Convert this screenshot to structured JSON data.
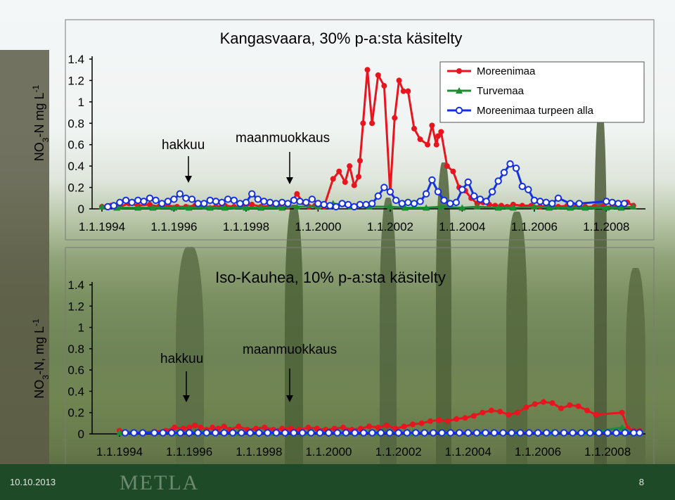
{
  "footer": {
    "date": "10.10.2013",
    "logo": "METLA",
    "page_number": "8"
  },
  "colors": {
    "moreenimaa": "#e8141e",
    "turvemaa": "#1e8c32",
    "moreenimaa_turpeen_alla": "#1430e0"
  },
  "chart_data": [
    {
      "type": "line",
      "title": "Kangasvaara, 30% p-a:sta käsitelty",
      "ylabel_main": "NO",
      "ylabel_sub": "3",
      "ylabel_rest": "-N mg L",
      "ylabel_sup": "-1",
      "ylim": [
        0,
        1.4
      ],
      "yticks": [
        "0",
        "0.2",
        "0.4",
        "0.6",
        "0.8",
        "1",
        "1.2",
        "1.4"
      ],
      "xlim": [
        "1994-01-01",
        "2009-02-01"
      ],
      "xticks": [
        "1.1.1994",
        "1.1.1996",
        "1.1.1998",
        "1.1.2000",
        "1.1.2002",
        "1.1.2004",
        "1.1.2006",
        "1.1.2008"
      ],
      "annotations": [
        {
          "text": "hakkuu",
          "x": "1995-09-01"
        },
        {
          "text": "maanmuokkaus",
          "x": "1999-09-01"
        }
      ],
      "legend": "top-right",
      "series": [
        {
          "name": "Moreenimaa",
          "x": [
            "1994-01-01",
            "1994-04-01",
            "1994-07-01",
            "1994-10-01",
            "1995-01-01",
            "1995-05-01",
            "1995-08-01",
            "1995-11-01",
            "1996-02-01",
            "1996-05-01",
            "1996-08-01",
            "1996-11-01",
            "1997-03-01",
            "1997-06-01",
            "1997-09-01",
            "1997-12-01",
            "1998-03-01",
            "1998-06-01",
            "1998-09-01",
            "1998-12-01",
            "1999-03-01",
            "1999-06-01",
            "1999-08-01",
            "1999-10-01",
            "1999-12-01",
            "2000-03-01",
            "2000-06-01",
            "2000-08-01",
            "2000-10-01",
            "2000-11-15",
            "2001-01-01",
            "2001-02-15",
            "2001-03-01",
            "2001-04-01",
            "2001-05-15",
            "2001-07-01",
            "2001-09-01",
            "2001-11-01",
            "2002-01-01",
            "2002-02-15",
            "2002-04-01",
            "2002-05-15",
            "2002-07-01",
            "2002-09-01",
            "2002-11-01",
            "2003-01-15",
            "2003-03-01",
            "2003-04-15",
            "2003-05-01",
            "2003-06-01",
            "2003-08-01",
            "2003-10-01",
            "2003-12-01",
            "2004-02-01",
            "2004-04-01",
            "2004-06-01",
            "2004-08-01",
            "2004-10-01",
            "2004-12-01",
            "2005-02-01",
            "2005-04-01",
            "2005-06-01",
            "2005-09-01",
            "2005-12-01",
            "2006-03-01",
            "2006-06-01",
            "2006-09-01",
            "2006-12-01",
            "2007-03-01",
            "2007-06-01",
            "2007-09-01",
            "2007-12-01",
            "2008-03-01",
            "2008-06-01",
            "2008-08-01",
            "2008-10-01"
          ],
          "y": [
            0.02,
            0.03,
            0.02,
            0.05,
            0.03,
            0.04,
            0.02,
            0.03,
            0.02,
            0.02,
            0.03,
            0.02,
            0.02,
            0.03,
            0.02,
            0.02,
            0.04,
            0.02,
            0.03,
            0.02,
            0.02,
            0.14,
            0.06,
            0.02,
            0.03,
            0.02,
            0.28,
            0.35,
            0.25,
            0.4,
            0.22,
            0.3,
            0.45,
            0.8,
            1.3,
            0.8,
            1.25,
            1.15,
            0.15,
            0.85,
            1.2,
            1.1,
            1.1,
            0.75,
            0.65,
            0.6,
            0.78,
            0.6,
            0.68,
            0.72,
            0.4,
            0.35,
            0.2,
            0.17,
            0.1,
            0.05,
            0.06,
            0.04,
            0.03,
            0.03,
            0.02,
            0.04,
            0.03,
            0.03,
            0.02,
            0.03,
            0.02,
            0.03,
            0.02,
            0.02,
            0.02,
            0.02,
            0.02,
            0.03,
            0.06,
            0.03
          ]
        },
        {
          "name": "Turvemaa",
          "x": [
            "1994-01-01",
            "1994-06-01",
            "1995-01-01",
            "1995-06-01",
            "1996-01-01",
            "1996-06-01",
            "1997-01-01",
            "1997-06-01",
            "1998-01-01",
            "1998-06-01",
            "1999-01-01",
            "1999-06-01",
            "2000-01-01",
            "2000-06-01",
            "2000-12-01",
            "2001-06-01",
            "2002-01-01",
            "2002-06-01",
            "2003-01-01",
            "2003-06-01",
            "2004-01-01",
            "2004-06-01",
            "2005-01-01",
            "2005-06-01",
            "2006-01-01",
            "2006-06-01",
            "2007-01-01",
            "2007-06-01",
            "2008-01-01",
            "2008-06-01",
            "2008-10-01"
          ],
          "y": [
            0.02,
            0.01,
            0.01,
            0.01,
            0.01,
            0.01,
            0.01,
            0.01,
            0.01,
            0.01,
            0.01,
            0.02,
            0.02,
            0.05,
            0.02,
            0.02,
            0.02,
            0.01,
            0.01,
            0.02,
            0.01,
            0.02,
            0.01,
            0.01,
            0.02,
            0.01,
            0.01,
            0.01,
            0.01,
            0.01,
            0.02
          ]
        },
        {
          "name": "Moreenimaa turpeen alla",
          "x": [
            "1994-03-01",
            "1994-05-01",
            "1994-07-01",
            "1994-09-01",
            "1994-11-01",
            "1995-01-01",
            "1995-03-01",
            "1995-05-01",
            "1995-07-01",
            "1995-09-01",
            "1995-11-01",
            "1996-01-01",
            "1996-03-01",
            "1996-05-01",
            "1996-07-01",
            "1996-09-01",
            "1996-11-01",
            "1997-01-01",
            "1997-03-01",
            "1997-05-01",
            "1997-07-01",
            "1997-09-01",
            "1997-11-01",
            "1998-01-01",
            "1998-03-01",
            "1998-05-01",
            "1998-07-01",
            "1998-09-01",
            "1998-11-01",
            "1999-01-01",
            "1999-03-01",
            "1999-05-01",
            "1999-07-01",
            "1999-09-01",
            "1999-11-01",
            "2000-01-01",
            "2000-03-01",
            "2000-05-01",
            "2000-07-01",
            "2000-09-01",
            "2000-11-01",
            "2001-01-01",
            "2001-03-01",
            "2001-05-01",
            "2001-07-01",
            "2001-09-01",
            "2001-11-01",
            "2002-01-01",
            "2002-03-01",
            "2002-05-01",
            "2002-07-01",
            "2002-09-01",
            "2002-11-01",
            "2003-01-01",
            "2003-03-01",
            "2003-05-01",
            "2003-07-01",
            "2003-09-01",
            "2003-11-01",
            "2004-01-01",
            "2004-03-01",
            "2004-05-01",
            "2004-07-01",
            "2004-09-01",
            "2004-11-01",
            "2005-01-01",
            "2005-03-01",
            "2005-05-01",
            "2005-07-01",
            "2005-09-01",
            "2005-11-01",
            "2006-01-01",
            "2006-03-01",
            "2006-05-01",
            "2006-07-01",
            "2006-09-01",
            "2007-01-01",
            "2007-04-01",
            "2008-01-01",
            "2008-03-01",
            "2008-05-01",
            "2008-07-01"
          ],
          "y": [
            0.02,
            0.03,
            0.06,
            0.08,
            0.06,
            0.08,
            0.07,
            0.1,
            0.08,
            0.05,
            0.07,
            0.09,
            0.14,
            0.1,
            0.09,
            0.05,
            0.05,
            0.08,
            0.07,
            0.06,
            0.09,
            0.08,
            0.05,
            0.06,
            0.14,
            0.09,
            0.07,
            0.06,
            0.05,
            0.06,
            0.05,
            0.08,
            0.07,
            0.06,
            0.09,
            0.05,
            0.04,
            0.03,
            0.02,
            0.05,
            0.04,
            0.02,
            0.04,
            0.04,
            0.05,
            0.12,
            0.2,
            0.16,
            0.08,
            0.05,
            0.06,
            0.05,
            0.07,
            0.14,
            0.27,
            0.16,
            0.08,
            0.05,
            0.06,
            0.18,
            0.25,
            0.12,
            0.09,
            0.07,
            0.16,
            0.26,
            0.34,
            0.42,
            0.38,
            0.21,
            0.18,
            0.08,
            0.07,
            0.06,
            0.05,
            0.1,
            0.05,
            0.05,
            0.07,
            0.06,
            0.05,
            0.05
          ]
        }
      ]
    },
    {
      "type": "line",
      "title": "Iso-Kauhea, 10% p-a:sta käsitelty",
      "ylabel_main": "NO",
      "ylabel_sub": "3",
      "ylabel_rest": "-N, mg L",
      "ylabel_sup": "-1",
      "ylim": [
        0,
        1.4
      ],
      "yticks": [
        "0",
        "0.2",
        "0.4",
        "0.6",
        "0.8",
        "1",
        "1.2",
        "1.4"
      ],
      "xlim": [
        "1993-07-01",
        "2009-02-01"
      ],
      "xticks": [
        "1.1.1994",
        "1.1.1996",
        "1.1.1998",
        "1.1.2000",
        "1.1.2002",
        "1.1.2004",
        "1.1.2006",
        "1.1.2008"
      ],
      "annotations": [
        {
          "text": "hakkuu",
          "x": "1995-09-01"
        },
        {
          "text": "maanmuokkaus",
          "x": "1999-09-01"
        }
      ],
      "series": [
        {
          "name": "Moreenimaa",
          "x": [
            "1994-01-01",
            "1994-06-01",
            "1995-01-01",
            "1995-05-01",
            "1995-08-01",
            "1995-11-01",
            "1996-01-01",
            "1996-03-01",
            "1996-05-01",
            "1996-07-01",
            "1996-09-01",
            "1996-11-01",
            "1997-01-01",
            "1997-03-01",
            "1997-06-01",
            "1997-09-01",
            "1997-12-01",
            "1998-03-01",
            "1998-06-01",
            "1998-09-01",
            "1998-12-01",
            "1999-03-01",
            "1999-06-01",
            "1999-09-01",
            "1999-12-01",
            "2000-03-01",
            "2000-06-01",
            "2000-09-01",
            "2000-12-01",
            "2001-03-01",
            "2001-06-01",
            "2001-09-01",
            "2001-12-01",
            "2002-03-01",
            "2002-06-01",
            "2002-09-01",
            "2002-12-01",
            "2003-03-01",
            "2003-06-01",
            "2003-09-01",
            "2003-12-01",
            "2004-03-01",
            "2004-06-01",
            "2004-09-01",
            "2004-12-01",
            "2005-03-01",
            "2005-06-01",
            "2005-09-01",
            "2005-12-01",
            "2006-03-01",
            "2006-06-01",
            "2006-09-01",
            "2006-12-01",
            "2007-03-01",
            "2007-06-01",
            "2007-09-01",
            "2008-06-01",
            "2008-08-01",
            "2008-10-01",
            "2008-12-01"
          ],
          "y": [
            0.03,
            0.01,
            0.02,
            0.03,
            0.06,
            0.05,
            0.06,
            0.08,
            0.06,
            0.04,
            0.06,
            0.05,
            0.07,
            0.04,
            0.07,
            0.04,
            0.05,
            0.06,
            0.04,
            0.05,
            0.05,
            0.04,
            0.06,
            0.05,
            0.04,
            0.05,
            0.06,
            0.04,
            0.05,
            0.07,
            0.06,
            0.08,
            0.05,
            0.07,
            0.09,
            0.1,
            0.12,
            0.13,
            0.12,
            0.14,
            0.15,
            0.17,
            0.2,
            0.22,
            0.21,
            0.18,
            0.2,
            0.25,
            0.28,
            0.3,
            0.29,
            0.24,
            0.27,
            0.26,
            0.22,
            0.18,
            0.2,
            0.05,
            0.03,
            0.03
          ]
        },
        {
          "name": "Turvemaa",
          "x": [
            "1994-01-01",
            "1995-01-01",
            "1995-09-01",
            "1996-06-01",
            "1997-06-01",
            "1998-06-01",
            "1999-06-01",
            "2000-06-01",
            "2001-06-01",
            "2002-06-01",
            "2003-06-01",
            "2004-06-01",
            "2005-06-01",
            "2006-06-01",
            "2007-06-01",
            "2008-06-01",
            "2008-10-01"
          ],
          "y": [
            0.01,
            0.01,
            0.01,
            0.02,
            0.01,
            0.01,
            0.01,
            0.01,
            0.01,
            0.01,
            0.01,
            0.01,
            0.01,
            0.01,
            0.01,
            0.06,
            0.01
          ]
        },
        {
          "name": "Moreenimaa turpeen alla",
          "x": [
            "1994-03-01",
            "1994-06-01",
            "1994-09-01",
            "1995-01-01",
            "1995-04-01",
            "1995-07-01",
            "1995-10-01",
            "1996-01-01",
            "1996-04-01",
            "1996-07-01",
            "1996-10-01",
            "1997-01-01",
            "1997-04-01",
            "1997-07-01",
            "1997-10-01",
            "1998-01-01",
            "1998-04-01",
            "1998-07-01",
            "1998-10-01",
            "1999-01-01",
            "1999-04-01",
            "1999-07-01",
            "1999-10-01",
            "2000-01-01",
            "2000-04-01",
            "2000-07-01",
            "2000-10-01",
            "2001-01-01",
            "2001-04-01",
            "2001-07-01",
            "2001-10-01",
            "2002-01-01",
            "2002-04-01",
            "2002-07-01",
            "2002-10-01",
            "2003-01-01",
            "2003-04-01",
            "2003-07-01",
            "2003-10-01",
            "2004-01-01",
            "2004-04-01",
            "2004-07-01",
            "2004-10-01",
            "2005-01-01",
            "2005-04-01",
            "2005-07-01",
            "2005-10-01",
            "2006-01-01",
            "2006-04-01",
            "2006-07-01",
            "2006-10-01",
            "2007-01-01",
            "2007-04-01",
            "2007-07-01",
            "2007-10-01",
            "2008-01-01",
            "2008-04-01",
            "2008-07-01",
            "2008-10-01",
            "2008-12-01"
          ],
          "y": [
            0.01,
            0.01,
            0.01,
            0.01,
            0.01,
            0.01,
            0.01,
            0.01,
            0.01,
            0.01,
            0.01,
            0.01,
            0.01,
            0.01,
            0.01,
            0.01,
            0.01,
            0.01,
            0.01,
            0.01,
            0.01,
            0.01,
            0.01,
            0.01,
            0.01,
            0.01,
            0.01,
            0.01,
            0.01,
            0.01,
            0.01,
            0.01,
            0.01,
            0.01,
            0.01,
            0.01,
            0.01,
            0.01,
            0.01,
            0.01,
            0.01,
            0.01,
            0.01,
            0.01,
            0.01,
            0.01,
            0.01,
            0.01,
            0.01,
            0.01,
            0.01,
            0.01,
            0.01,
            0.01,
            0.01,
            0.01,
            0.01,
            0.01,
            0.01,
            0.01
          ]
        }
      ]
    }
  ]
}
